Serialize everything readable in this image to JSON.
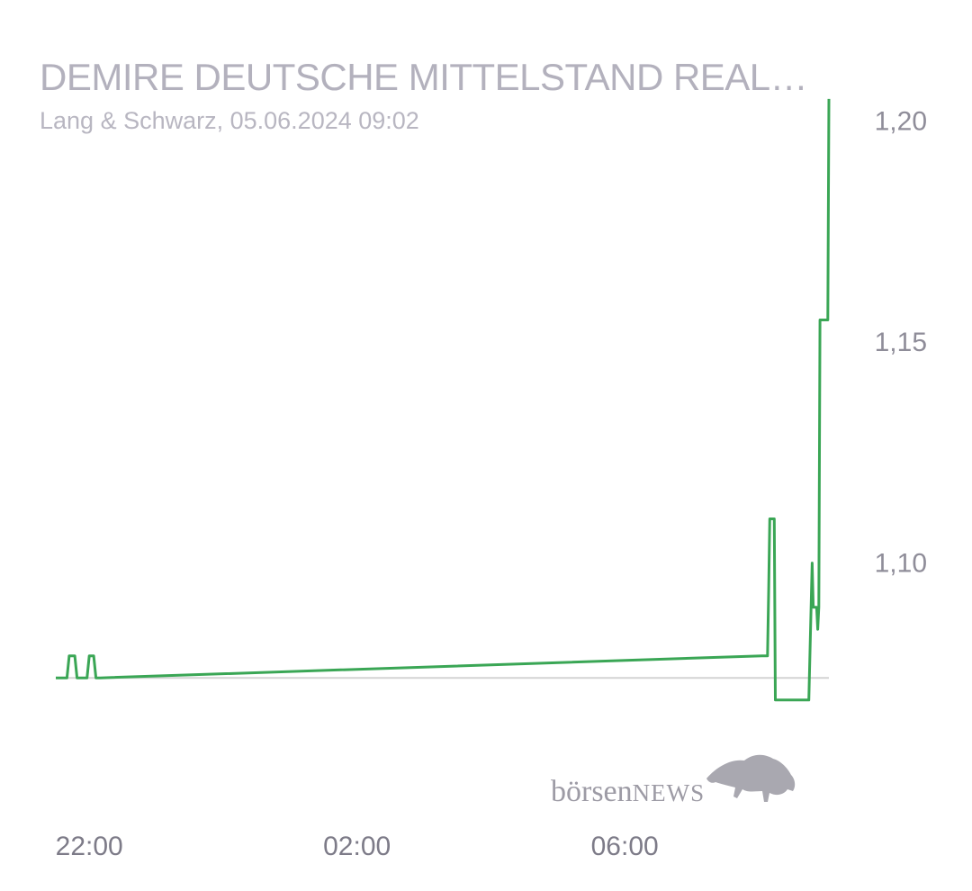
{
  "header": {
    "title": "DEMIRE DEUTSCHE MITTELSTAND REAL…",
    "subtitle": "Lang & Schwarz, 05.06.2024 09:02"
  },
  "watermark": {
    "brand_main": "börsen",
    "brand_news": "NEWS",
    "logo_icon": "bull-icon"
  },
  "colors": {
    "line": "#3aa655",
    "baseline": "#d4d4d4"
  },
  "chart_data": {
    "type": "line",
    "x_tick_labels": [
      "22:00",
      "02:00",
      "06:00"
    ],
    "y_tick_labels": [
      "1,20",
      "1,15",
      "1,10"
    ],
    "y_ticks": [
      1.2,
      1.15,
      1.1
    ],
    "ylim": [
      1.06,
      1.206
    ],
    "reference_line": 1.074,
    "series": [
      {
        "x": [
          "21:30",
          "21:40",
          "21:42",
          "21:47",
          "21:49",
          "21:58",
          "22:00",
          "22:04",
          "22:06",
          "22:10",
          "08:03",
          "08:08",
          "08:09",
          "08:10",
          "08:14",
          "08:15",
          "08:24",
          "08:45",
          "08:48",
          "08:49",
          "08:50",
          "08:52",
          "08:53",
          "08:54",
          "08:55",
          "08:57",
          "09:02",
          "09:03"
        ],
        "y": [
          1.074,
          1.074,
          1.079,
          1.079,
          1.074,
          1.074,
          1.079,
          1.079,
          1.074,
          1.074,
          1.079,
          1.079,
          1.094,
          1.11,
          1.11,
          1.069,
          1.069,
          1.069,
          1.1,
          1.09,
          1.09,
          1.09,
          1.085,
          1.09,
          1.155,
          1.155,
          1.155,
          1.205
        ]
      }
    ]
  }
}
